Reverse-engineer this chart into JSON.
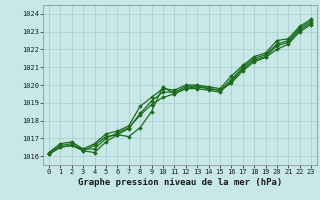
{
  "title": "Graphe pression niveau de la mer (hPa)",
  "bg_color": "#c8e8e8",
  "grid_color": "#b0d4d4",
  "line_color": "#1a6b1a",
  "xlim": [
    -0.5,
    23.5
  ],
  "ylim": [
    1015.5,
    1024.5
  ],
  "yticks": [
    1016,
    1017,
    1018,
    1019,
    1020,
    1021,
    1022,
    1023,
    1024
  ],
  "xticks": [
    0,
    1,
    2,
    3,
    4,
    5,
    6,
    7,
    8,
    9,
    10,
    11,
    12,
    13,
    14,
    15,
    16,
    17,
    18,
    19,
    20,
    21,
    22,
    23
  ],
  "series": [
    [
      1016.1,
      1016.5,
      1016.6,
      1016.3,
      1016.2,
      1016.8,
      1017.2,
      1017.1,
      1017.6,
      1018.5,
      1019.9,
      1019.5,
      1019.8,
      1019.8,
      1019.7,
      1019.6,
      1020.2,
      1020.9,
      1021.4,
      1021.6,
      1022.2,
      1022.4,
      1023.1,
      1023.5
    ],
    [
      1016.1,
      1016.5,
      1016.6,
      1016.4,
      1016.4,
      1017.0,
      1017.3,
      1017.6,
      1018.3,
      1018.9,
      1019.3,
      1019.5,
      1019.8,
      1019.9,
      1019.8,
      1019.7,
      1020.1,
      1020.8,
      1021.3,
      1021.55,
      1022.0,
      1022.3,
      1023.0,
      1023.4
    ],
    [
      1016.15,
      1016.6,
      1016.7,
      1016.3,
      1016.6,
      1017.1,
      1017.2,
      1017.55,
      1018.4,
      1019.1,
      1019.6,
      1019.6,
      1019.9,
      1019.95,
      1019.8,
      1019.7,
      1020.3,
      1021.0,
      1021.5,
      1021.7,
      1022.3,
      1022.5,
      1023.2,
      1023.6
    ],
    [
      1016.2,
      1016.7,
      1016.8,
      1016.4,
      1016.7,
      1017.25,
      1017.4,
      1017.7,
      1018.8,
      1019.3,
      1019.8,
      1019.7,
      1020.0,
      1020.0,
      1019.9,
      1019.8,
      1020.5,
      1021.1,
      1021.6,
      1021.8,
      1022.5,
      1022.6,
      1023.3,
      1023.7
    ]
  ]
}
